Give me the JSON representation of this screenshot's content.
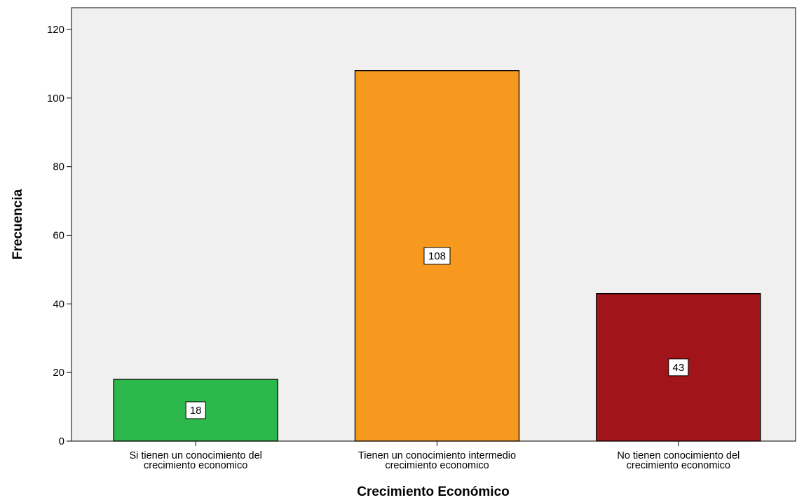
{
  "chart_data": {
    "type": "bar",
    "categories": [
      [
        "Si tienen un conocimiento del",
        "crecimiento economico"
      ],
      [
        "Tienen un conocimiento intermedio",
        "crecimiento economico"
      ],
      [
        "No tienen conocimiento del",
        "crecimiento economico"
      ]
    ],
    "values": [
      18,
      108,
      43
    ],
    "data_labels": [
      "18",
      "108",
      "43"
    ],
    "colors": [
      "#2db84b",
      "#f7991e",
      "#a0141a"
    ],
    "xlabel": "Crecimiento Económico",
    "ylabel": "Frecuencia",
    "ylim": [
      0,
      120
    ],
    "yticks": [
      0,
      20,
      40,
      60,
      80,
      100,
      120
    ],
    "plot_background": "#f0f0f0",
    "grid": false,
    "legend": "none"
  }
}
